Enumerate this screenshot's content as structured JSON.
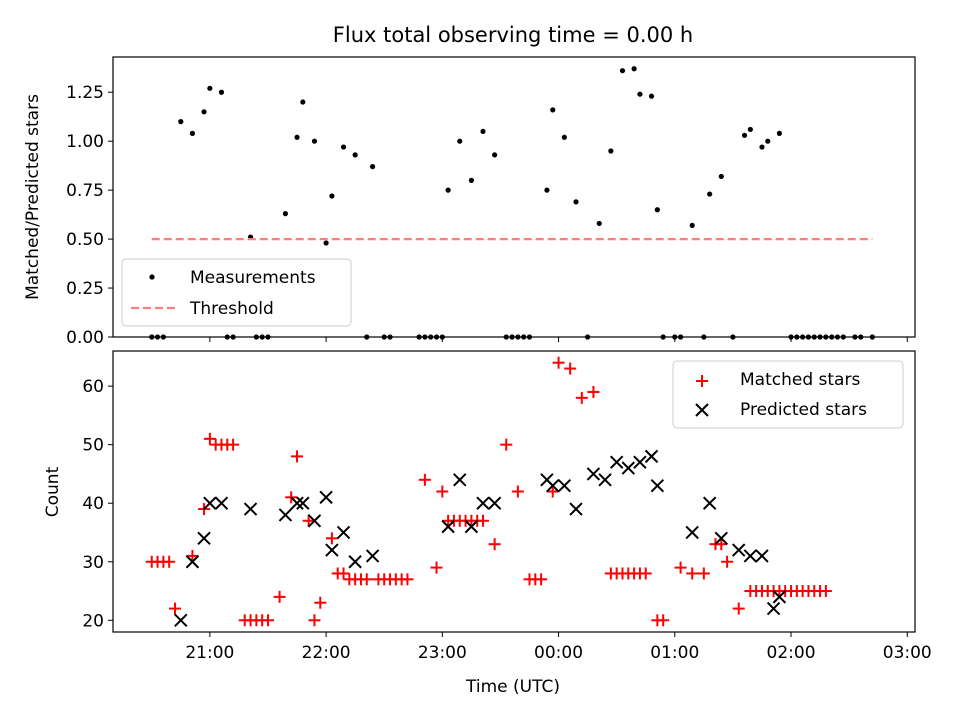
{
  "chart_data": [
    {
      "type": "scatter",
      "title": "Flux total observing time = 0.00 h",
      "xlabel": "",
      "ylabel": "Matched/Predicted stars",
      "ylim": [
        0,
        1.43
      ],
      "xlim": [
        "20:10",
        "03:04"
      ],
      "x_ticks": [
        "21:00",
        "22:00",
        "23:00",
        "00:00",
        "01:00",
        "02:00",
        "03:00"
      ],
      "y_ticks": [
        "0.00",
        "0.25",
        "0.50",
        "0.75",
        "1.00",
        "1.25"
      ],
      "legend_position": "lower-left",
      "series": [
        {
          "name": "Measurements",
          "color": "#000000",
          "marker": "dot",
          "points": [
            [
              "20:30",
              0
            ],
            [
              "20:33",
              0
            ],
            [
              "20:36",
              0
            ],
            [
              "20:45",
              1.1
            ],
            [
              "20:51",
              1.04
            ],
            [
              "20:57",
              1.15
            ],
            [
              "21:00",
              1.27
            ],
            [
              "21:06",
              1.25
            ],
            [
              "21:09",
              0
            ],
            [
              "21:12",
              0
            ],
            [
              "21:21",
              0.51
            ],
            [
              "21:24",
              0
            ],
            [
              "21:27",
              0
            ],
            [
              "21:30",
              0
            ],
            [
              "21:39",
              0.63
            ],
            [
              "21:45",
              1.02
            ],
            [
              "21:48",
              1.2
            ],
            [
              "21:54",
              1.0
            ],
            [
              "22:00",
              0.48
            ],
            [
              "22:03",
              0.72
            ],
            [
              "22:09",
              0.97
            ],
            [
              "22:15",
              0.93
            ],
            [
              "22:21",
              0
            ],
            [
              "22:24",
              0.87
            ],
            [
              "22:30",
              0
            ],
            [
              "22:33",
              0
            ],
            [
              "22:48",
              0
            ],
            [
              "22:51",
              0
            ],
            [
              "22:54",
              0
            ],
            [
              "22:57",
              0
            ],
            [
              "23:00",
              0
            ],
            [
              "23:03",
              0.75
            ],
            [
              "23:09",
              1.0
            ],
            [
              "23:15",
              0.8
            ],
            [
              "23:21",
              1.05
            ],
            [
              "23:27",
              0.93
            ],
            [
              "23:33",
              0
            ],
            [
              "23:36",
              0
            ],
            [
              "23:39",
              0
            ],
            [
              "23:42",
              0
            ],
            [
              "23:45",
              0
            ],
            [
              "23:54",
              0.75
            ],
            [
              "23:57",
              1.16
            ],
            [
              "00:03",
              1.02
            ],
            [
              "00:09",
              0.69
            ],
            [
              "00:15",
              0
            ],
            [
              "00:21",
              0.58
            ],
            [
              "00:27",
              0.95
            ],
            [
              "00:33",
              1.36
            ],
            [
              "00:39",
              1.37
            ],
            [
              "00:42",
              1.24
            ],
            [
              "00:48",
              1.23
            ],
            [
              "00:51",
              0.65
            ],
            [
              "00:54",
              0
            ],
            [
              "01:00",
              0
            ],
            [
              "01:03",
              0
            ],
            [
              "01:09",
              0.57
            ],
            [
              "01:15",
              0
            ],
            [
              "01:18",
              0.73
            ],
            [
              "01:24",
              0.82
            ],
            [
              "01:30",
              0
            ],
            [
              "01:36",
              1.03
            ],
            [
              "01:39",
              1.06
            ],
            [
              "01:45",
              0.97
            ],
            [
              "01:48",
              1.0
            ],
            [
              "01:54",
              1.04
            ],
            [
              "02:00",
              0
            ],
            [
              "02:03",
              0
            ],
            [
              "02:06",
              0
            ],
            [
              "02:09",
              0
            ],
            [
              "02:12",
              0
            ],
            [
              "02:15",
              0
            ],
            [
              "02:18",
              0
            ],
            [
              "02:21",
              0
            ],
            [
              "02:24",
              0
            ],
            [
              "02:27",
              0
            ],
            [
              "02:33",
              0
            ],
            [
              "02:36",
              0
            ],
            [
              "02:42",
              0
            ]
          ]
        },
        {
          "name": "Threshold",
          "color": "#ff7f7f",
          "style": "dashed",
          "points": [
            [
              "20:30",
              0.5
            ],
            [
              "02:42",
              0.5
            ]
          ]
        }
      ]
    },
    {
      "type": "scatter",
      "title": "",
      "xlabel": "Time (UTC)",
      "ylabel": "Count",
      "ylim": [
        18,
        66
      ],
      "xlim": [
        "20:10",
        "03:04"
      ],
      "x_ticks": [
        "21:00",
        "22:00",
        "23:00",
        "00:00",
        "01:00",
        "02:00",
        "03:00"
      ],
      "y_ticks": [
        "20",
        "30",
        "40",
        "50",
        "60"
      ],
      "legend_position": "upper-right",
      "series": [
        {
          "name": "Matched stars",
          "color": "#ff0000",
          "marker": "plus",
          "points": [
            [
              "20:30",
              30
            ],
            [
              "20:33",
              30
            ],
            [
              "20:36",
              30
            ],
            [
              "20:39",
              30
            ],
            [
              "20:42",
              22
            ],
            [
              "20:51",
              31
            ],
            [
              "20:57",
              39
            ],
            [
              "21:00",
              51
            ],
            [
              "21:03",
              50
            ],
            [
              "21:06",
              50
            ],
            [
              "21:09",
              50
            ],
            [
              "21:12",
              50
            ],
            [
              "21:18",
              20
            ],
            [
              "21:21",
              20
            ],
            [
              "21:24",
              20
            ],
            [
              "21:27",
              20
            ],
            [
              "21:30",
              20
            ],
            [
              "21:36",
              24
            ],
            [
              "21:42",
              41
            ],
            [
              "21:45",
              48
            ],
            [
              "21:51",
              37
            ],
            [
              "21:54",
              20
            ],
            [
              "21:57",
              23
            ],
            [
              "22:03",
              34
            ],
            [
              "22:06",
              28
            ],
            [
              "22:09",
              28
            ],
            [
              "22:12",
              27
            ],
            [
              "22:15",
              27
            ],
            [
              "22:18",
              27
            ],
            [
              "22:21",
              27
            ],
            [
              "22:27",
              27
            ],
            [
              "22:30",
              27
            ],
            [
              "22:33",
              27
            ],
            [
              "22:36",
              27
            ],
            [
              "22:39",
              27
            ],
            [
              "22:42",
              27
            ],
            [
              "22:51",
              44
            ],
            [
              "22:57",
              29
            ],
            [
              "23:00",
              42
            ],
            [
              "23:03",
              37
            ],
            [
              "23:06",
              37
            ],
            [
              "23:09",
              37
            ],
            [
              "23:12",
              37
            ],
            [
              "23:15",
              37
            ],
            [
              "23:18",
              37
            ],
            [
              "23:21",
              37
            ],
            [
              "23:27",
              33
            ],
            [
              "23:33",
              50
            ],
            [
              "23:39",
              42
            ],
            [
              "23:45",
              27
            ],
            [
              "23:48",
              27
            ],
            [
              "23:51",
              27
            ],
            [
              "23:57",
              42
            ],
            [
              "00:00",
              64
            ],
            [
              "00:06",
              63
            ],
            [
              "00:12",
              58
            ],
            [
              "00:18",
              59
            ],
            [
              "00:27",
              28
            ],
            [
              "00:30",
              28
            ],
            [
              "00:33",
              28
            ],
            [
              "00:36",
              28
            ],
            [
              "00:39",
              28
            ],
            [
              "00:42",
              28
            ],
            [
              "00:45",
              28
            ],
            [
              "00:51",
              20
            ],
            [
              "00:54",
              20
            ],
            [
              "01:03",
              29
            ],
            [
              "01:09",
              28
            ],
            [
              "01:15",
              28
            ],
            [
              "01:21",
              33
            ],
            [
              "01:24",
              33
            ],
            [
              "01:27",
              30
            ],
            [
              "01:33",
              22
            ],
            [
              "01:39",
              25
            ],
            [
              "01:42",
              25
            ],
            [
              "01:45",
              25
            ],
            [
              "01:48",
              25
            ],
            [
              "01:51",
              25
            ],
            [
              "01:54",
              25
            ],
            [
              "01:57",
              25
            ],
            [
              "02:00",
              25
            ],
            [
              "02:03",
              25
            ],
            [
              "02:06",
              25
            ],
            [
              "02:09",
              25
            ],
            [
              "02:12",
              25
            ],
            [
              "02:15",
              25
            ],
            [
              "02:18",
              25
            ]
          ]
        },
        {
          "name": "Predicted stars",
          "color": "#000000",
          "marker": "x",
          "points": [
            [
              "20:45",
              20
            ],
            [
              "20:51",
              30
            ],
            [
              "20:57",
              34
            ],
            [
              "21:00",
              40
            ],
            [
              "21:06",
              40
            ],
            [
              "21:21",
              39
            ],
            [
              "21:39",
              38
            ],
            [
              "21:45",
              40
            ],
            [
              "21:48",
              40
            ],
            [
              "21:54",
              37
            ],
            [
              "22:00",
              41
            ],
            [
              "22:03",
              32
            ],
            [
              "22:09",
              35
            ],
            [
              "22:15",
              30
            ],
            [
              "22:24",
              31
            ],
            [
              "23:03",
              36
            ],
            [
              "23:09",
              44
            ],
            [
              "23:15",
              36
            ],
            [
              "23:21",
              40
            ],
            [
              "23:27",
              40
            ],
            [
              "23:54",
              44
            ],
            [
              "23:57",
              43
            ],
            [
              "00:03",
              43
            ],
            [
              "00:09",
              39
            ],
            [
              "00:18",
              45
            ],
            [
              "00:24",
              44
            ],
            [
              "00:30",
              47
            ],
            [
              "00:36",
              46
            ],
            [
              "00:42",
              47
            ],
            [
              "00:48",
              48
            ],
            [
              "00:51",
              43
            ],
            [
              "01:09",
              35
            ],
            [
              "01:18",
              40
            ],
            [
              "01:24",
              34
            ],
            [
              "01:33",
              32
            ],
            [
              "01:39",
              31
            ],
            [
              "01:45",
              31
            ],
            [
              "01:51",
              22
            ],
            [
              "01:54",
              24
            ]
          ]
        }
      ]
    }
  ]
}
